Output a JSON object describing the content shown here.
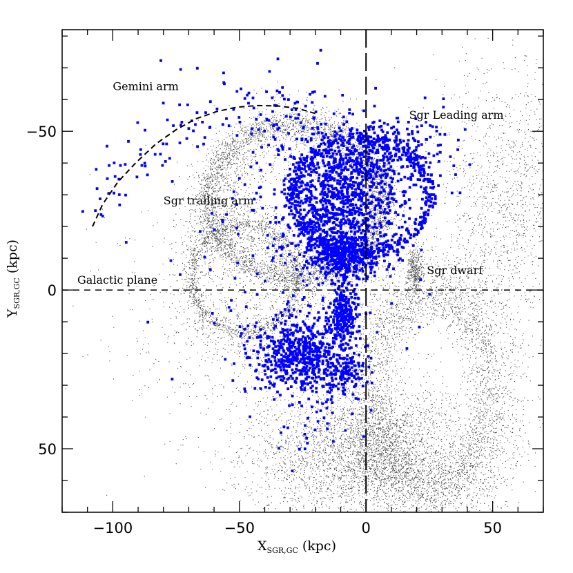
{
  "chart_data": {
    "type": "scatter",
    "title": "",
    "xlabel": "X",
    "xlabel_sub": "SGR,GC",
    "xlabel_unit": "(kpc)",
    "ylabel": "Y",
    "ylabel_sub": "SGR,GC",
    "ylabel_unit": "(kpc)",
    "xlim": [
      -120,
      70
    ],
    "ylim": [
      -82,
      70
    ],
    "y_inverted": true,
    "grid": false,
    "x_ticks": [
      -100,
      -50,
      0,
      50
    ],
    "x_tick_labels": [
      "−100",
      "−50",
      "0",
      "50"
    ],
    "y_ticks": [
      -50,
      0,
      50
    ],
    "y_tick_labels": [
      "−50",
      "0",
      "50"
    ],
    "reference_lines": [
      {
        "orientation": "horizontal",
        "value": 0,
        "style": "dashed"
      },
      {
        "orientation": "vertical",
        "value": 0,
        "style": "long-dashed"
      }
    ],
    "annotations": [
      {
        "text": "Gemini arm",
        "x": -100,
        "y": -63
      },
      {
        "text": "Sgr Leading arm",
        "x": 17,
        "y": -54
      },
      {
        "text": "Galactic plane",
        "x": -114,
        "y": -2
      },
      {
        "text": "Sgr dwarf",
        "x": 24,
        "y": -5
      },
      {
        "text": "Sgr trailing arm",
        "x": -80,
        "y": -27
      }
    ],
    "dashed_curve": {
      "name": "Gemini arm",
      "points": [
        [
          -108,
          -20
        ],
        [
          -104,
          -27
        ],
        [
          -98,
          -34
        ],
        [
          -91,
          -40
        ],
        [
          -83,
          -46
        ],
        [
          -75,
          -50.5
        ],
        [
          -67,
          -54
        ],
        [
          -59,
          -56.2
        ],
        [
          -51,
          -57.6
        ],
        [
          -43,
          -58.1
        ],
        [
          -35,
          -58
        ],
        [
          -27,
          -57.2
        ],
        [
          -20,
          -55.6
        ]
      ]
    },
    "series": [
      {
        "name": "",
        "color": "#000000",
        "marker": "dot",
        "structures": [
          {
            "kind": "ring",
            "cx": -28,
            "cy": -28,
            "rx": 35,
            "ry": 24,
            "width": 4,
            "n": 2600
          },
          {
            "kind": "ring",
            "cx": -28,
            "cy": -28,
            "rx": 33,
            "ry": 22,
            "width": 12,
            "n": 2400
          },
          {
            "kind": "ring",
            "cx": -48,
            "cy": -4,
            "rx": 21,
            "ry": 17,
            "width": 2,
            "n": 900
          },
          {
            "kind": "ring",
            "cx": -48,
            "cy": -4,
            "rx": 22,
            "ry": 18,
            "width": 9,
            "n": 1000
          },
          {
            "kind": "ring",
            "cx": 26,
            "cy": 32,
            "rx": 22,
            "ry": 30,
            "width": 8,
            "n": 2200
          },
          {
            "kind": "ring",
            "cx": 26,
            "cy": 32,
            "rx": 30,
            "ry": 38,
            "width": 11,
            "n": 1500
          },
          {
            "kind": "blob",
            "cx": 19,
            "cy": -6,
            "sx": 1.6,
            "sy": 3.6,
            "n": 380
          },
          {
            "kind": "blob",
            "cx": 10,
            "cy": 50,
            "sx": 20,
            "sy": 11,
            "n": 2200
          },
          {
            "kind": "blob",
            "cx": -15,
            "cy": 52,
            "sx": 20,
            "sy": 10,
            "n": 1500
          },
          {
            "kind": "blob",
            "cx": 55,
            "cy": -28,
            "sx": 13,
            "sy": 20,
            "n": 1300
          },
          {
            "kind": "blob",
            "cx": -45,
            "cy": 10,
            "sx": 30,
            "sy": 18,
            "n": 900
          }
        ]
      },
      {
        "name": "",
        "color": "#0000ff",
        "marker": "square",
        "structures": [
          {
            "kind": "blob",
            "cx": -10,
            "cy": -11,
            "sx": 7,
            "sy": 4,
            "n": 430
          },
          {
            "kind": "blob",
            "cx": -10,
            "cy": -28,
            "sx": 11,
            "sy": 11,
            "n": 1000
          },
          {
            "kind": "ring",
            "cx": -2,
            "cy": -30,
            "rx": 27,
            "ry": 18,
            "width": 3,
            "n": 520
          },
          {
            "kind": "blob",
            "cx": 8,
            "cy": -43,
            "sx": 12,
            "sy": 6,
            "n": 320
          },
          {
            "kind": "blob",
            "cx": -9,
            "cy": 8,
            "sx": 2.6,
            "sy": 5,
            "n": 240
          },
          {
            "kind": "blob",
            "cx": -27,
            "cy": 20,
            "sx": 9,
            "sy": 6,
            "n": 560
          },
          {
            "kind": "blob",
            "cx": -10,
            "cy": 25,
            "sx": 6,
            "sy": 4,
            "n": 160
          },
          {
            "kind": "arc",
            "n": 110
          },
          {
            "kind": "blob",
            "cx": -30,
            "cy": -15,
            "sx": 25,
            "sy": 25,
            "n": 200
          },
          {
            "kind": "blob",
            "cx": -20,
            "cy": 38,
            "sx": 12,
            "sy": 8,
            "n": 40
          }
        ]
      }
    ]
  }
}
